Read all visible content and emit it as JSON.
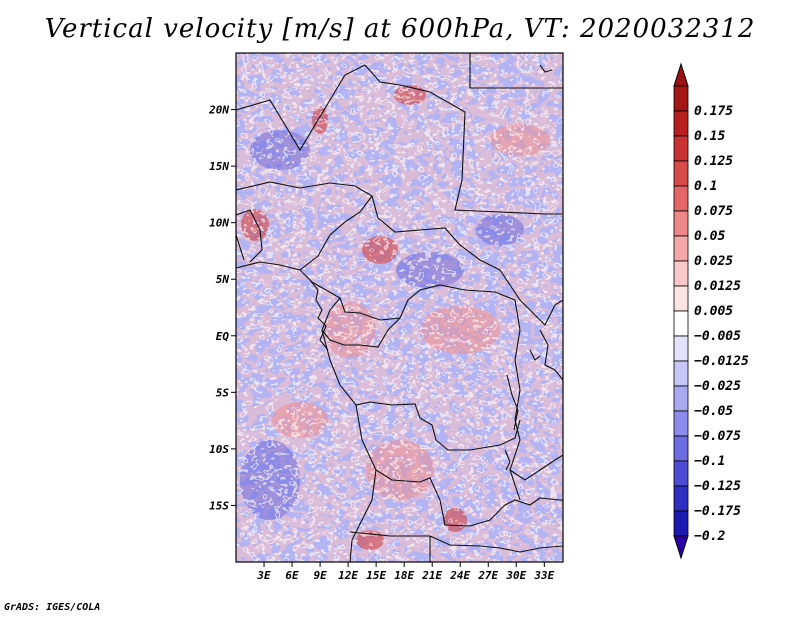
{
  "title": "Vertical velocity [m/s] at 600hPa, VT: 2020032312",
  "footer": "GrADS: IGES/COLA",
  "map": {
    "lon_range": [
      0,
      35
    ],
    "lat_range": [
      -20,
      25
    ],
    "lat_ticks": [
      {
        "value": 20,
        "label": "20N"
      },
      {
        "value": 15,
        "label": "15N"
      },
      {
        "value": 10,
        "label": "10N"
      },
      {
        "value": 5,
        "label": "5N"
      },
      {
        "value": 0,
        "label": "EQ"
      },
      {
        "value": -5,
        "label": "5S"
      },
      {
        "value": -10,
        "label": "10S"
      },
      {
        "value": -15,
        "label": "15S"
      }
    ],
    "lon_ticks": [
      {
        "value": 3,
        "label": "3E"
      },
      {
        "value": 6,
        "label": "6E"
      },
      {
        "value": 9,
        "label": "9E"
      },
      {
        "value": 12,
        "label": "12E"
      },
      {
        "value": 15,
        "label": "15E"
      },
      {
        "value": 18,
        "label": "18E"
      },
      {
        "value": 21,
        "label": "21E"
      },
      {
        "value": 24,
        "label": "24E"
      },
      {
        "value": 27,
        "label": "27E"
      },
      {
        "value": 30,
        "label": "30E"
      },
      {
        "value": 33,
        "label": "33E"
      }
    ]
  },
  "colorbar": {
    "levels": [
      {
        "label": "0.175",
        "color": "#a51616"
      },
      {
        "label": "0.15",
        "color": "#b81f1f"
      },
      {
        "label": "0.125",
        "color": "#c93232"
      },
      {
        "label": "0.1",
        "color": "#d94a4a"
      },
      {
        "label": "0.075",
        "color": "#e46767"
      },
      {
        "label": "0.05",
        "color": "#ee8888"
      },
      {
        "label": "0.025",
        "color": "#f5a8a8"
      },
      {
        "label": "0.0125",
        "color": "#f9c8c8"
      },
      {
        "label": "0.005",
        "color": "#fde4e4"
      },
      {
        "label": "−0.005",
        "color": "#ffffff"
      },
      {
        "label": "−0.0125",
        "color": "#e2e2fb"
      },
      {
        "label": "−0.025",
        "color": "#c6c6f7"
      },
      {
        "label": "−0.05",
        "color": "#a9a9f2"
      },
      {
        "label": "−0.075",
        "color": "#8b8bec"
      },
      {
        "label": "−0.1",
        "color": "#6c6ce2"
      },
      {
        "label": "−0.125",
        "color": "#4d4dd3"
      },
      {
        "label": "−0.175",
        "color": "#2e2ec2"
      },
      {
        "label": "−0.2",
        "color": "#1a1ab0"
      }
    ],
    "top_triangle_color": "#9c1212",
    "bottom_triangle_color": "#2c00a8"
  }
}
